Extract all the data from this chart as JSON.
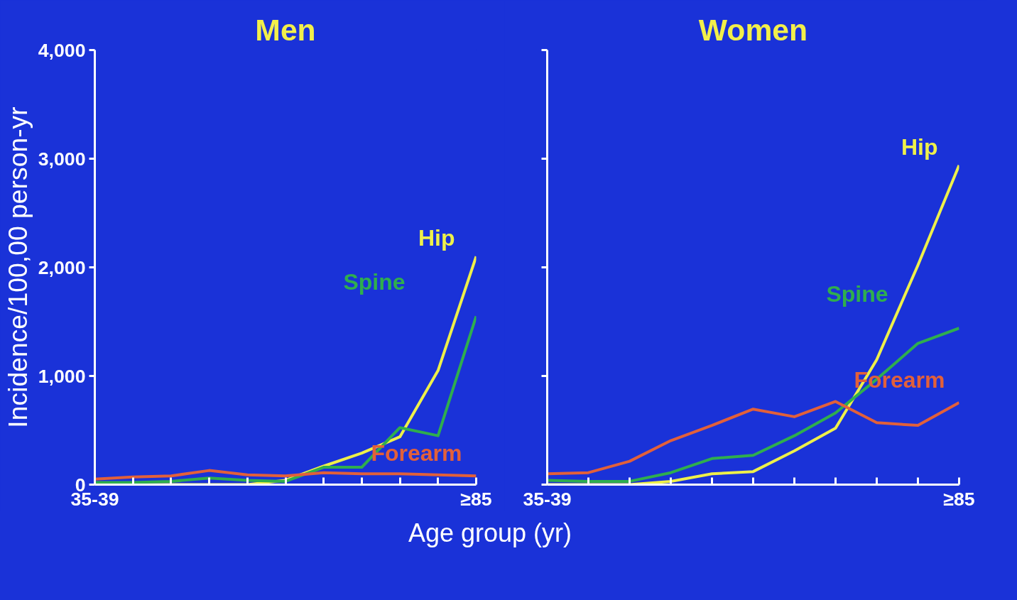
{
  "chart_data": [
    {
      "type": "line",
      "title": "Men",
      "ylabel": "Incidence/100,00 person-yr",
      "xlabel": "Age group (yr)",
      "categories": [
        "35-39",
        null,
        null,
        null,
        null,
        null,
        null,
        null,
        null,
        null,
        "≥85"
      ],
      "series": [
        {
          "name": "Hip",
          "color": "#eef04a",
          "values": [
            0,
            0,
            0,
            0,
            0,
            40,
            170,
            290,
            440,
            1050,
            2100
          ]
        },
        {
          "name": "Spine",
          "color": "#2fae4e",
          "values": [
            20,
            20,
            30,
            60,
            40,
            30,
            160,
            160,
            525,
            450,
            1550
          ]
        },
        {
          "name": "Forearm",
          "color": "#e2603a",
          "values": [
            50,
            70,
            80,
            130,
            90,
            80,
            110,
            100,
            100,
            90,
            80
          ]
        }
      ],
      "ylim": [
        0,
        4000
      ],
      "yticks": [
        0,
        {
          "value": 1000,
          "label": "1,000"
        },
        {
          "value": 2000,
          "label": "2,000"
        },
        {
          "value": 3000,
          "label": "3,000"
        },
        {
          "value": 4000,
          "label": "4,000"
        }
      ],
      "grid": false,
      "marker": "none",
      "line_style": "solid"
    },
    {
      "type": "line",
      "title": "Women",
      "categories": [
        "35-39",
        null,
        null,
        null,
        null,
        null,
        null,
        null,
        null,
        null,
        "≥85"
      ],
      "series": [
        {
          "name": "Hip",
          "color": "#eef04a",
          "values": [
            0,
            0,
            0,
            30,
            100,
            120,
            310,
            520,
            1150,
            2020,
            2940
          ]
        },
        {
          "name": "Spine",
          "color": "#2fae4e",
          "values": [
            40,
            30,
            30,
            110,
            240,
            270,
            450,
            660,
            970,
            1300,
            1440
          ]
        },
        {
          "name": "Forearm",
          "color": "#e2603a",
          "values": [
            100,
            110,
            215,
            405,
            545,
            695,
            625,
            765,
            570,
            545,
            755
          ]
        }
      ],
      "ylim": [
        0,
        4000
      ],
      "yticks": [
        0,
        1000,
        2000,
        3000,
        4000
      ],
      "tick_labels": "x",
      "grid": false,
      "marker": "none",
      "line_style": "solid"
    }
  ]
}
